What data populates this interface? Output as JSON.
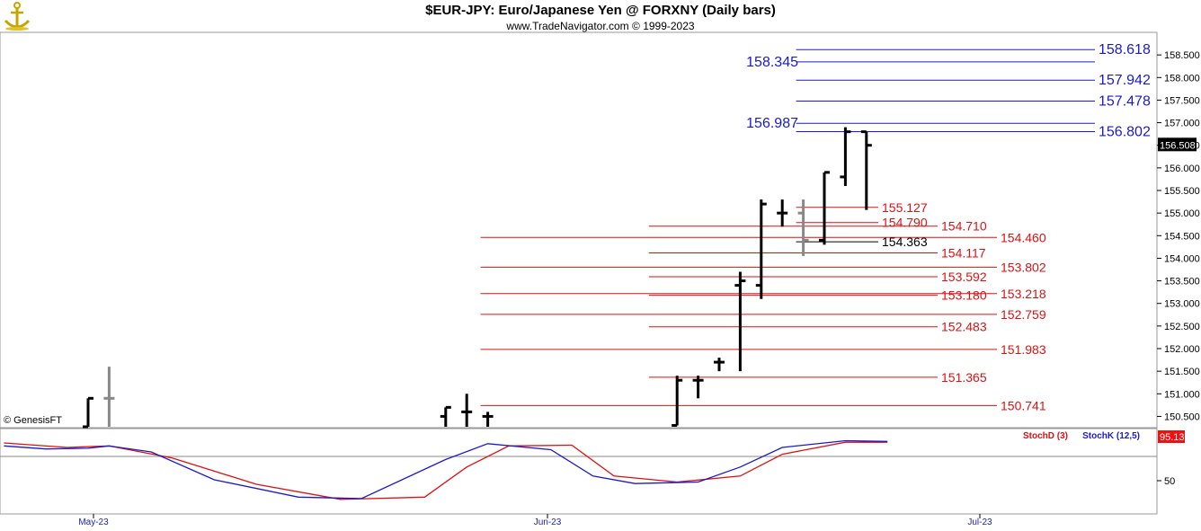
{
  "header": {
    "title": "$EUR-JPY:  Euro/Japanese Yen @ FORXNY  (Daily bars)",
    "subtitle": "www.TradeNavigator.com © 1999-2023",
    "copyright": "© GenesisFT",
    "logo_icon": "anchor-logo-icon"
  },
  "colors": {
    "up_line": "#1a1acc",
    "down_line": "#dd1111",
    "bar": "#000000",
    "bar_gray": "#888888",
    "stoch_d": "#dd1111",
    "stoch_k": "#1a1acc",
    "last_price_box": "#000000",
    "stoch_box": "#ee1111"
  },
  "chart_data": [
    {
      "type": "ohlc",
      "title": "$EUR-JPY:  Euro/Japanese Yen @ FORXNY  (Daily bars)",
      "ylim": [
        150.27,
        158.98
      ],
      "y_ticks": [
        "150.500",
        "151.000",
        "151.500",
        "152.000",
        "152.500",
        "153.000",
        "153.500",
        "154.000",
        "154.500",
        "155.000",
        "155.500",
        "156.000",
        "156.500",
        "157.000",
        "157.500",
        "158.000",
        "158.500"
      ],
      "x_ticks": [
        {
          "label": "May-23",
          "day": 0
        },
        {
          "label": "Jun-23",
          "day": 22
        },
        {
          "label": "Jul-23",
          "day": 43
        }
      ],
      "last_price": "156.508",
      "bars": [
        {
          "day": 4,
          "o": 150.2,
          "h": 150.9,
          "l": 150.2,
          "c": 150.9,
          "gray": false
        },
        {
          "day": 5,
          "o": 150.9,
          "h": 151.6,
          "l": 150.2,
          "c": 150.9,
          "gray": true
        },
        {
          "day": 21,
          "o": 150.5,
          "h": 150.7,
          "l": 150.2,
          "c": 150.7,
          "gray": false
        },
        {
          "day": 22,
          "o": 150.6,
          "h": 151.0,
          "l": 150.2,
          "c": 150.6,
          "gray": false
        },
        {
          "day": 23,
          "o": 150.5,
          "h": 150.6,
          "l": 150.2,
          "c": 150.5,
          "gray": false
        },
        {
          "day": 32,
          "o": 150.3,
          "h": 151.4,
          "l": 150.3,
          "c": 151.3,
          "gray": false
        },
        {
          "day": 33,
          "o": 151.3,
          "h": 151.4,
          "l": 150.9,
          "c": 151.3,
          "gray": false
        },
        {
          "day": 34,
          "o": 151.7,
          "h": 151.8,
          "l": 151.5,
          "c": 151.7,
          "gray": false
        },
        {
          "day": 35,
          "o": 153.4,
          "h": 153.7,
          "l": 151.5,
          "c": 153.5,
          "gray": false
        },
        {
          "day": 36,
          "o": 153.4,
          "h": 155.3,
          "l": 153.1,
          "c": 155.2,
          "gray": false
        },
        {
          "day": 37,
          "o": 155.0,
          "h": 155.3,
          "l": 154.7,
          "c": 155.0,
          "gray": false
        },
        {
          "day": 38,
          "o": 155.0,
          "h": 155.3,
          "l": 154.05,
          "c": 154.4,
          "gray": true
        },
        {
          "day": 39,
          "o": 154.4,
          "h": 155.9,
          "l": 154.3,
          "c": 155.9,
          "gray": false
        },
        {
          "day": 40,
          "o": 155.8,
          "h": 156.9,
          "l": 155.6,
          "c": 156.8,
          "gray": false
        },
        {
          "day": 41,
          "o": 156.8,
          "h": 156.8,
          "l": 155.07,
          "c": 156.5,
          "gray": false
        }
      ],
      "levels": [
        {
          "label": "158.618",
          "value": 158.618,
          "color": "blue",
          "from_day": 38,
          "label_side": "right"
        },
        {
          "label": "158.345",
          "value": 158.345,
          "color": "blue",
          "from_day": 38,
          "label_side": "left"
        },
        {
          "label": "157.942",
          "value": 157.942,
          "color": "blue",
          "from_day": 38,
          "label_side": "right"
        },
        {
          "label": "157.478",
          "value": 157.478,
          "color": "blue",
          "from_day": 38,
          "label_side": "right"
        },
        {
          "label": "156.987",
          "value": 156.987,
          "color": "blue",
          "from_day": 38,
          "label_side": "left"
        },
        {
          "label": "156.802",
          "value": 156.802,
          "color": "blue",
          "from_day": 38,
          "label_side": "right"
        },
        {
          "label": "155.127",
          "value": 155.127,
          "color": "red",
          "from_day": 38,
          "label_side": "end"
        },
        {
          "label": "154.790",
          "value": 154.79,
          "color": "red",
          "from_day": 38,
          "label_side": "end"
        },
        {
          "label": "154.710",
          "value": 154.71,
          "color": "red",
          "from_day": 31,
          "label_side": "end2"
        },
        {
          "label": "154.460",
          "value": 154.46,
          "color": "red",
          "from_day": 23,
          "label_side": "end3"
        },
        {
          "label": "154.363",
          "value": 154.363,
          "color": "black",
          "from_day": 38,
          "label_side": "end"
        },
        {
          "label": "154.117",
          "value": 154.117,
          "color": "red",
          "from_day": 31,
          "label_side": "end2"
        },
        {
          "label": "153.802",
          "value": 153.802,
          "color": "red",
          "from_day": 23,
          "label_side": "end3"
        },
        {
          "label": "153.592",
          "value": 153.592,
          "color": "red",
          "from_day": 31,
          "label_side": "end2"
        },
        {
          "label": "153.180",
          "value": 153.18,
          "color": "red",
          "from_day": 31,
          "label_side": "end2"
        },
        {
          "label": "153.218",
          "value": 153.218,
          "color": "red",
          "from_day": 23,
          "label_side": "end3"
        },
        {
          "label": "152.759",
          "value": 152.759,
          "color": "red",
          "from_day": 23,
          "label_side": "end3"
        },
        {
          "label": "152.483",
          "value": 152.483,
          "color": "red",
          "from_day": 31,
          "label_side": "end2"
        },
        {
          "label": "151.983",
          "value": 151.983,
          "color": "red",
          "from_day": 23,
          "label_side": "end3"
        },
        {
          "label": "151.365",
          "value": 151.365,
          "color": "red",
          "from_day": 31,
          "label_side": "end2"
        },
        {
          "label": "150.741",
          "value": 150.741,
          "color": "red",
          "from_day": 23,
          "label_side": "end3"
        }
      ]
    },
    {
      "type": "line",
      "series": [
        {
          "name": "StochD (3)",
          "color": "red",
          "day": [
            0,
            3,
            5,
            8,
            12,
            16,
            20,
            22,
            24,
            27,
            29,
            32,
            35,
            37,
            40,
            42
          ],
          "values": [
            92,
            86,
            88,
            72,
            37,
            17,
            20,
            60,
            88,
            89,
            48,
            40,
            48,
            77,
            93,
            93
          ]
        },
        {
          "name": "StochK (12,5)",
          "color": "blue",
          "day": [
            0,
            2,
            4,
            5,
            7,
            10,
            14,
            17,
            21,
            23,
            26,
            28,
            30,
            33,
            35,
            37,
            40,
            42
          ],
          "values": [
            88,
            84,
            85,
            88,
            80,
            43,
            20,
            18,
            70,
            91,
            83,
            48,
            38,
            40,
            60,
            86,
            95,
            94
          ]
        }
      ],
      "ylim": [
        0,
        100
      ],
      "y_ticks": [
        "50"
      ],
      "last_value": "95.13"
    }
  ]
}
